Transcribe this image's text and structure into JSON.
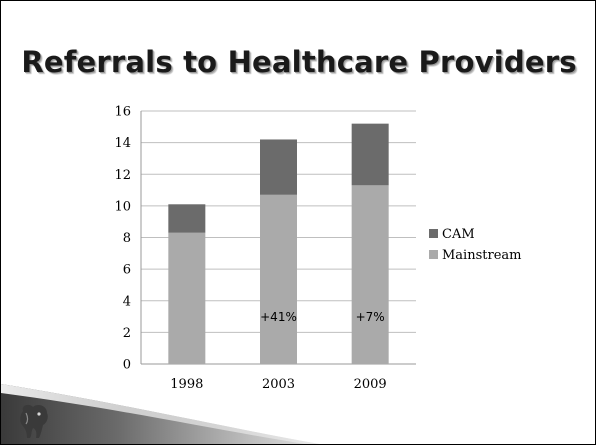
{
  "slide": {
    "title": "Referrals to Healthcare Providers"
  },
  "colors": {
    "cam": "#6b6b6b",
    "mainstream": "#aaaaaa",
    "gridline": "#bfbfbf"
  },
  "icons": {
    "logo": "elephant-head-icon"
  },
  "chart_data": {
    "type": "bar",
    "stacked": true,
    "title": "",
    "xlabel": "",
    "ylabel": "",
    "categories": [
      "1998",
      "2003",
      "2009"
    ],
    "series": [
      {
        "name": "Mainstream",
        "values": [
          8.3,
          10.7,
          11.3
        ]
      },
      {
        "name": "CAM",
        "values": [
          1.8,
          3.5,
          3.9
        ]
      }
    ],
    "ylim": [
      0,
      16
    ],
    "yticks": [
      0,
      2,
      4,
      6,
      8,
      10,
      12,
      14,
      16
    ],
    "grid": true,
    "legend_position": "right",
    "annotations": [
      {
        "category": "2003",
        "text": "+41%"
      },
      {
        "category": "2009",
        "text": "+7%"
      }
    ]
  }
}
